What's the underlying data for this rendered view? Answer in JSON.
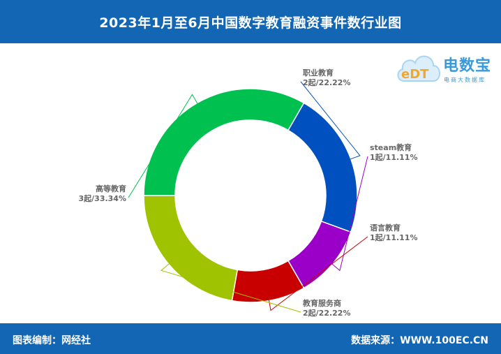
{
  "header": {
    "title": "2023年1月至6月中国数字教育融资事件数行业图"
  },
  "footer": {
    "left": "图表编制：网经社",
    "right": "数据来源：WWW.100EC.CN"
  },
  "logo": {
    "name": "电数宝",
    "sub": "电商大数据库",
    "mark": "eDT",
    "icon": "cloud-icon"
  },
  "colors": {
    "header_bg": "#1366b3",
    "职业教育": "#0050c0",
    "steam教育": "#9a00c8",
    "语言教育": "#c80000",
    "教育服务商": "#9fc300",
    "高等教育": "#00c050"
  },
  "chart_data": {
    "type": "pie",
    "donut": true,
    "title": "2023年1月至6月中国数字教育融资事件数行业图",
    "slices": [
      {
        "name": "职业教育",
        "value": 2,
        "label": "2起/22.22%",
        "color": "#0050c0"
      },
      {
        "name": "steam教育",
        "value": 1,
        "label": "1起/11.11%",
        "color": "#9a00c8"
      },
      {
        "name": "语言教育",
        "value": 1,
        "label": "1起/11.11%",
        "color": "#c80000"
      },
      {
        "name": "教育服务商",
        "value": 2,
        "label": "2起/22.22%",
        "color": "#9fc300"
      },
      {
        "name": "高等教育",
        "value": 3,
        "label": "3起/33.34%",
        "color": "#00c050"
      }
    ]
  }
}
